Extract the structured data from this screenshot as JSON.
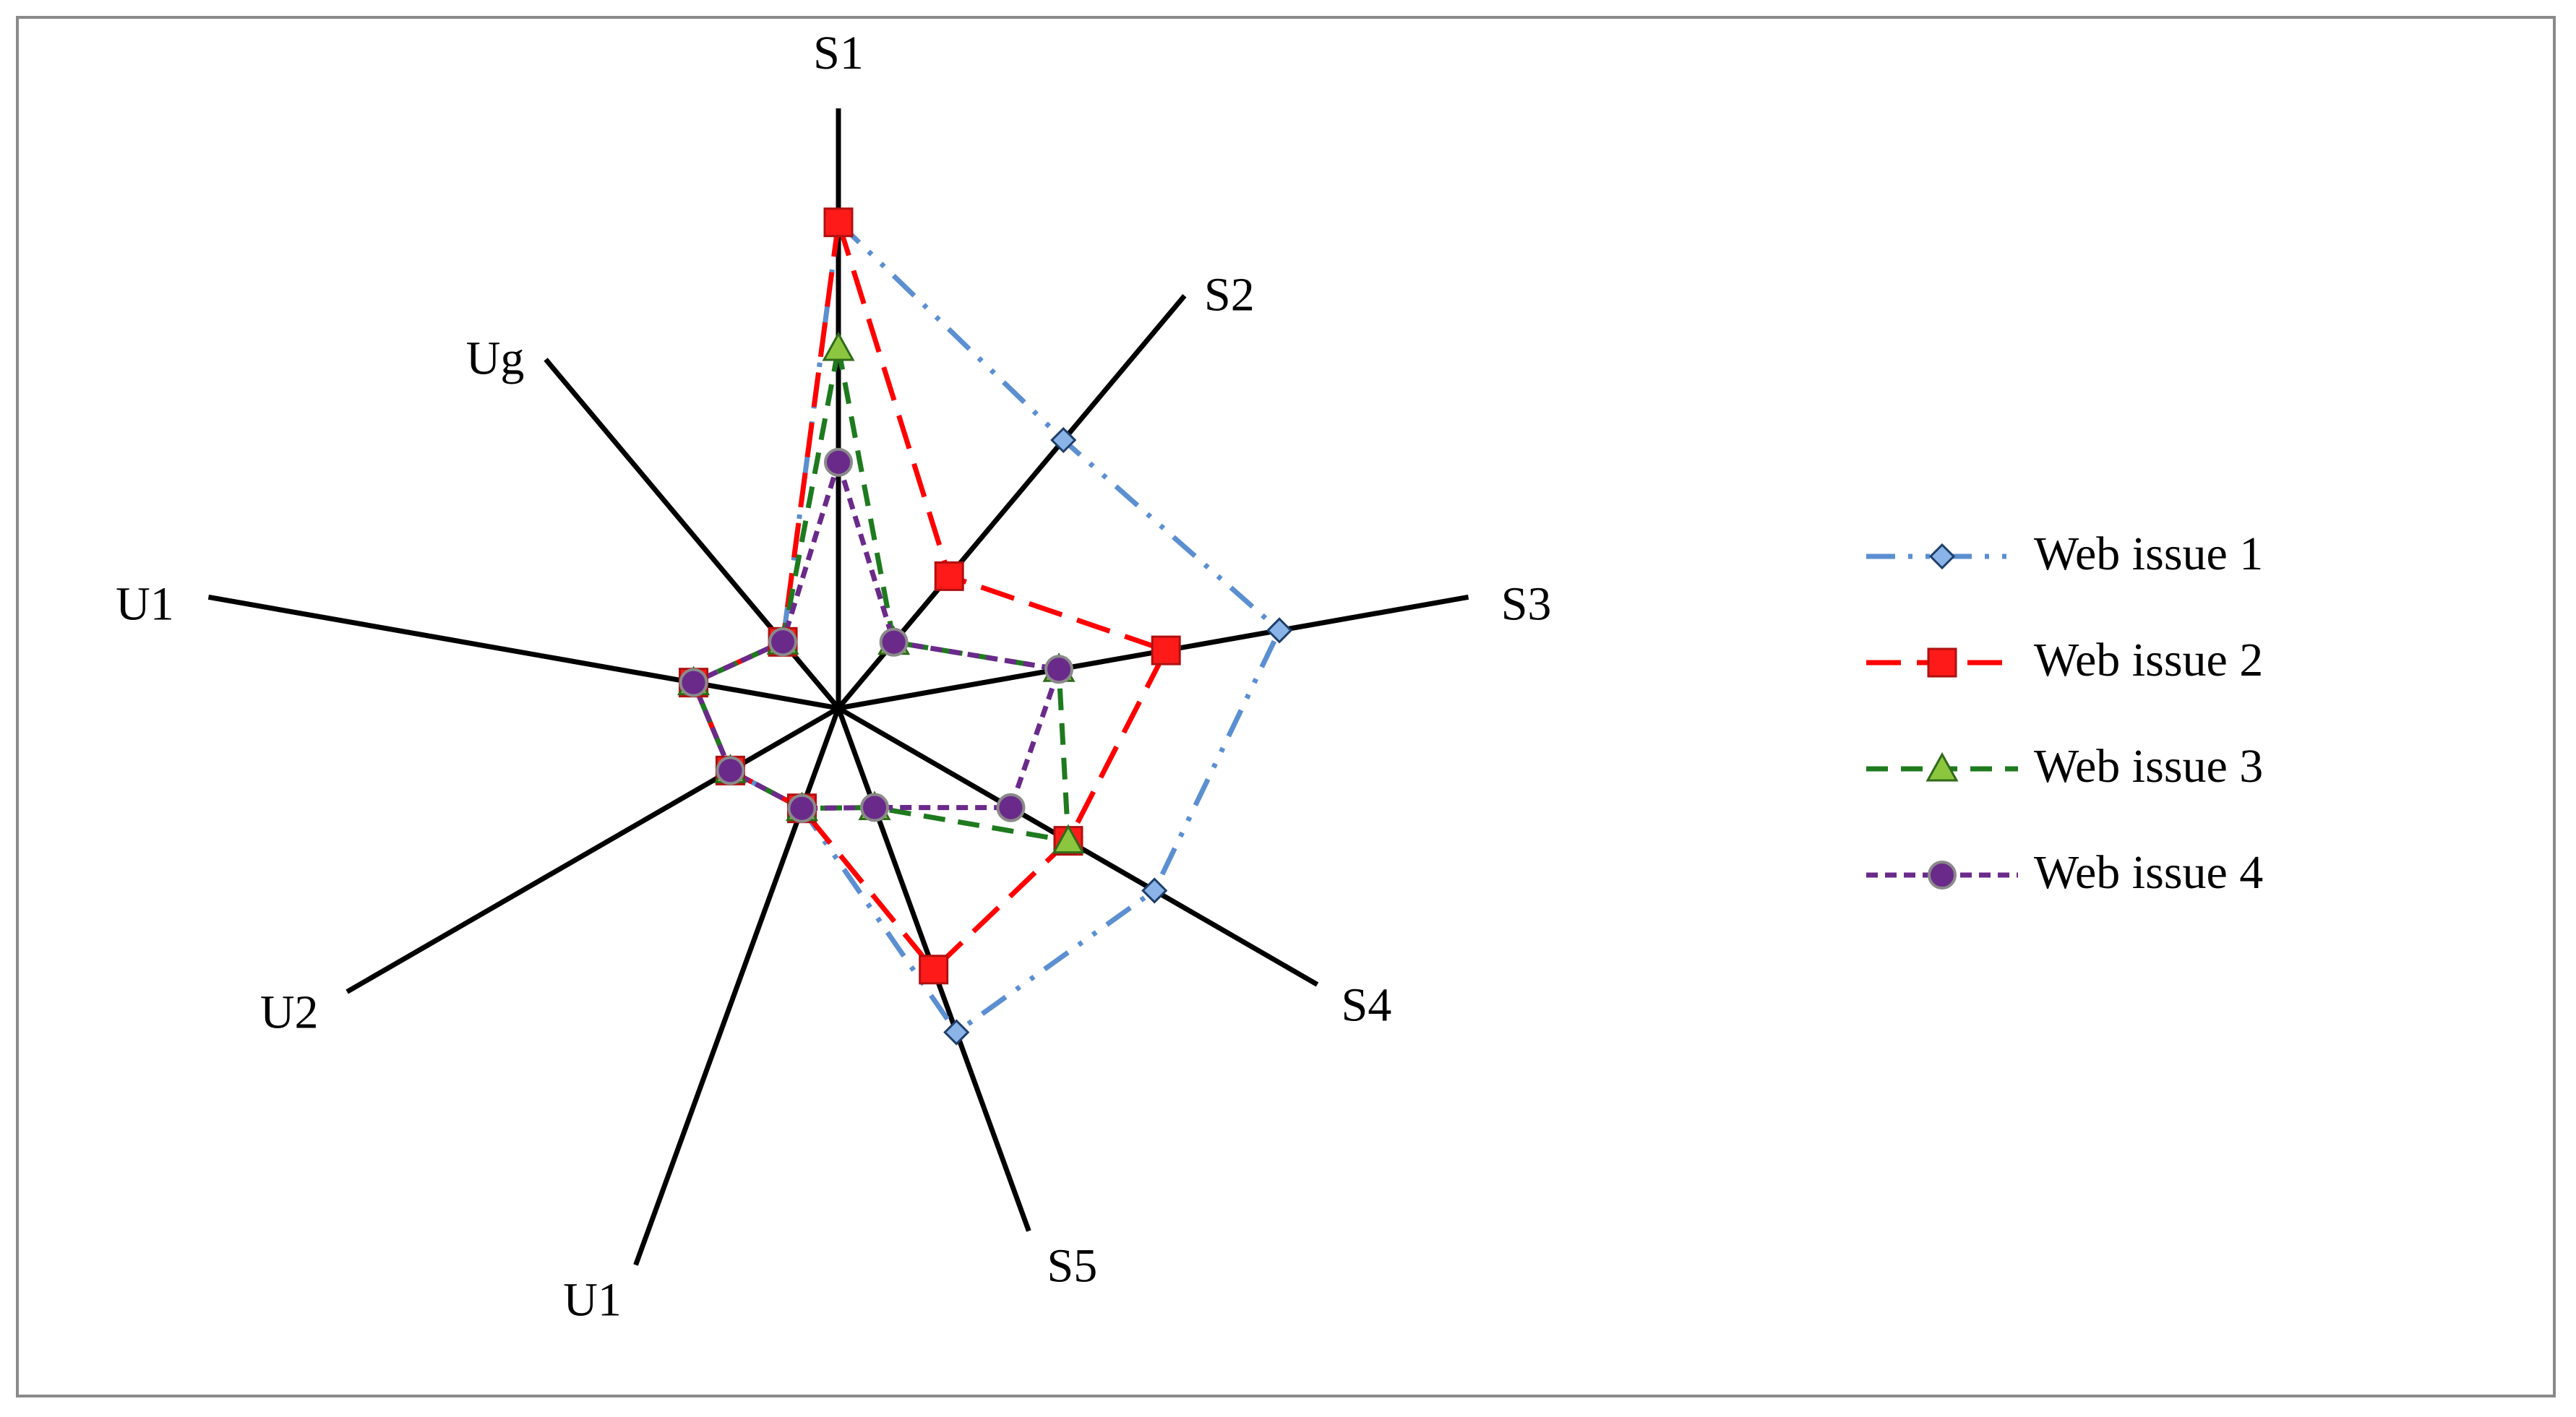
{
  "chart_data": {
    "type": "radar",
    "title": "",
    "axes": [
      "S1",
      "S2",
      "S3",
      "S4",
      "S5",
      "U1",
      "U2",
      "U1",
      "Ug"
    ],
    "range": [
      0,
      1
    ],
    "grid": false,
    "legend_position": "right",
    "series": [
      {
        "name": "Web issue 1",
        "color": "#5b8fd1",
        "dash": "dash-dot-dot",
        "marker": "diamond",
        "values": [
          0.81,
          0.65,
          0.7,
          0.66,
          0.62,
          0.18,
          0.22,
          0.23,
          0.19
        ]
      },
      {
        "name": "Web issue 2",
        "color": "#ff0000",
        "dash": "long-dash",
        "marker": "square",
        "values": [
          0.81,
          0.32,
          0.52,
          0.48,
          0.5,
          0.18,
          0.22,
          0.23,
          0.19
        ]
      },
      {
        "name": "Web issue 3",
        "color": "#1e7a1e",
        "dash": "dash",
        "marker": "triangle",
        "values": [
          0.6,
          0.16,
          0.35,
          0.48,
          0.19,
          0.18,
          0.22,
          0.23,
          0.19
        ]
      },
      {
        "name": "Web issue 4",
        "color": "#6a2a8a",
        "dash": "short-dash",
        "marker": "circle",
        "values": [
          0.41,
          0.16,
          0.35,
          0.36,
          0.19,
          0.18,
          0.22,
          0.23,
          0.19
        ]
      }
    ]
  }
}
